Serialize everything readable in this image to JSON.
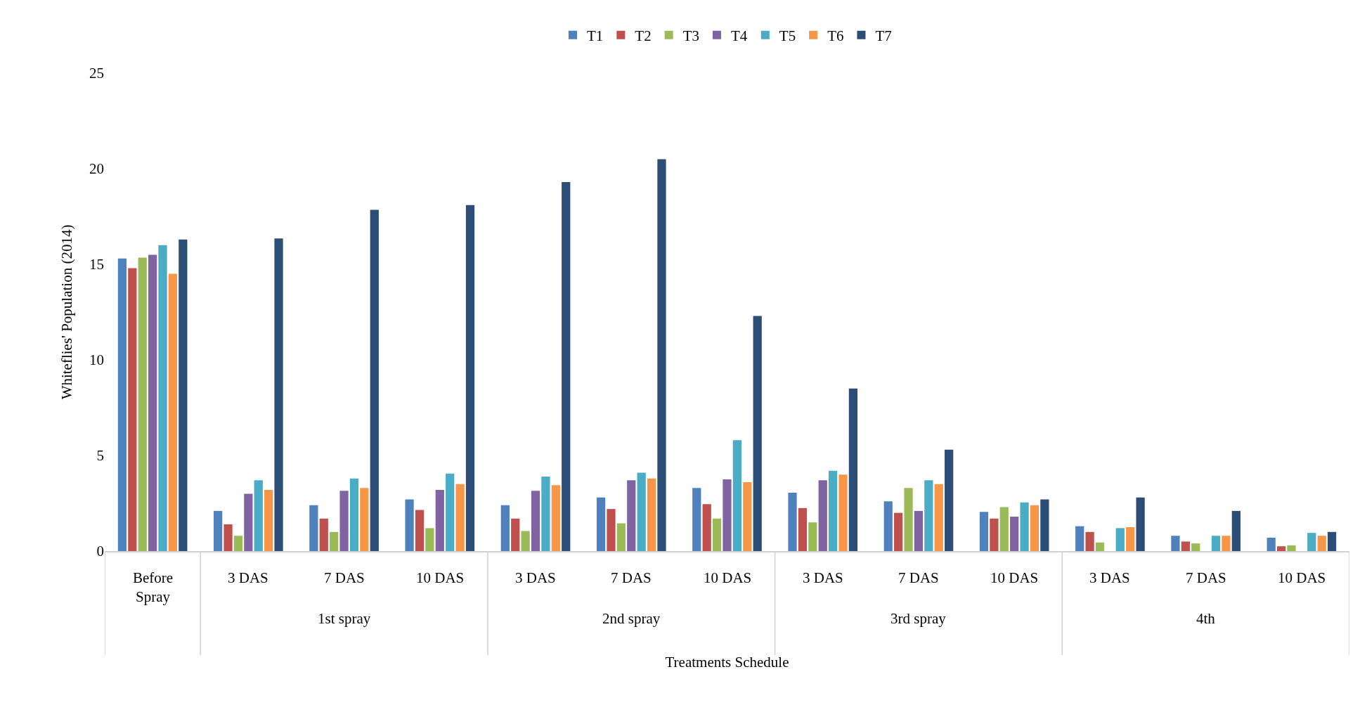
{
  "chart_data": {
    "type": "bar",
    "xlabel": "Treatments Schedule",
    "ylabel": "Whiteflies' Population (2014)",
    "categories": [
      "Before Spray",
      "3 DAS",
      "7 DAS",
      "10 DAS",
      "3 DAS",
      "7 DAS",
      "10 DAS",
      "3 DAS",
      "7 DAS",
      "10 DAS",
      "3 DAS",
      "7 DAS",
      "10 DAS"
    ],
    "annotations": [
      "1st spray",
      "2nd spray",
      "3rd spray",
      "4th"
    ],
    "series": [
      {
        "name": "T1",
        "color": "#4f81bd",
        "values": [
          15.3,
          2.1,
          2.4,
          2.7,
          2.4,
          2.8,
          3.3,
          3.05,
          2.6,
          2.05,
          1.3,
          0.8,
          0.7
        ]
      },
      {
        "name": "T2",
        "color": "#c0504d",
        "values": [
          14.8,
          1.4,
          1.7,
          2.15,
          1.7,
          2.2,
          2.45,
          2.25,
          2.0,
          1.7,
          1.0,
          0.5,
          0.25
        ]
      },
      {
        "name": "T3",
        "color": "#9bbb59",
        "values": [
          15.35,
          0.8,
          1.0,
          1.2,
          1.05,
          1.45,
          1.7,
          1.5,
          3.3,
          2.3,
          0.45,
          0.4,
          0.3
        ]
      },
      {
        "name": "T4",
        "color": "#8064a2",
        "values": [
          15.5,
          3.0,
          3.15,
          3.2,
          3.15,
          3.7,
          3.75,
          3.7,
          2.1,
          1.8,
          0,
          0,
          0
        ]
      },
      {
        "name": "T5",
        "color": "#4bacc6",
        "values": [
          16.0,
          3.7,
          3.8,
          4.05,
          3.9,
          4.1,
          5.8,
          4.2,
          3.7,
          2.55,
          1.2,
          0.8,
          0.95
        ]
      },
      {
        "name": "T6",
        "color": "#f79646",
        "values": [
          14.5,
          3.2,
          3.3,
          3.5,
          3.45,
          3.8,
          3.6,
          4.0,
          3.5,
          2.4,
          1.25,
          0.8,
          0.8
        ]
      },
      {
        "name": "T7",
        "color": "#2c4d75",
        "values": [
          16.3,
          16.35,
          17.85,
          18.1,
          19.3,
          20.5,
          12.3,
          8.5,
          5.3,
          2.7,
          2.8,
          2.1,
          1.0
        ]
      }
    ],
    "ylim": [
      0,
      25
    ],
    "yticks": [
      0,
      5,
      10,
      15,
      20,
      25
    ],
    "grid": false,
    "legend": "top"
  }
}
